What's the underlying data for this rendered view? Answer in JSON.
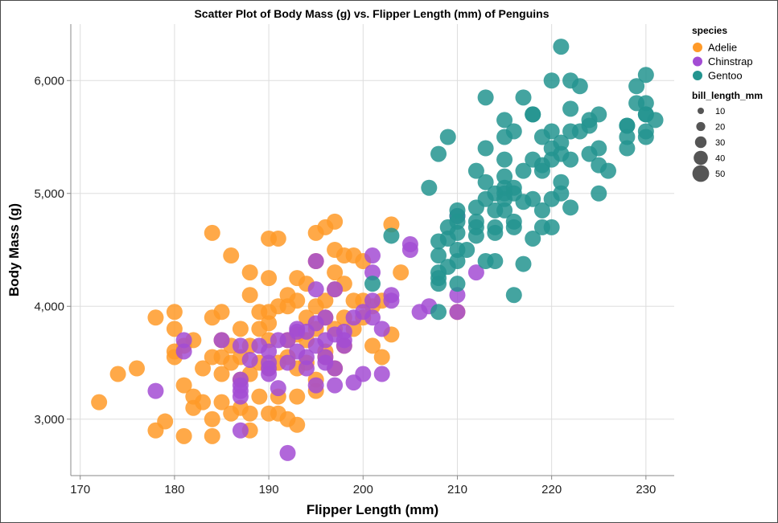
{
  "chart_data": {
    "type": "scatter",
    "title": "Scatter Plot of Body Mass (g) vs. Flipper Length (mm) of Penguins",
    "xlabel": "Flipper Length (mm)",
    "ylabel": "Body Mass (g)",
    "xlim": [
      169,
      233
    ],
    "ylim": [
      2500,
      6500
    ],
    "x_ticks": [
      170,
      180,
      190,
      200,
      210,
      220,
      230
    ],
    "y_ticks": [
      3000,
      4000,
      5000,
      6000
    ],
    "x_tick_labels": [
      "170",
      "180",
      "190",
      "200",
      "210",
      "220",
      "230"
    ],
    "y_tick_labels": [
      "3,000",
      "4,000",
      "5,000",
      "6,000"
    ],
    "grid": true,
    "legend_placement": "right",
    "color_legend_title": "species",
    "size_legend_title": "bill_length_mm",
    "size_legend_values": [
      10,
      20,
      30,
      40,
      50
    ],
    "size_legend_labels": [
      "10",
      "20",
      "30",
      "40",
      "50"
    ],
    "series": [
      {
        "name": "Adelie",
        "color": "#ff9a28",
        "points": [
          [
            172,
            3150
          ],
          [
            174,
            3400
          ],
          [
            176,
            3450
          ],
          [
            178,
            3900
          ],
          [
            178,
            2900
          ],
          [
            179,
            2980
          ],
          [
            180,
            3950
          ],
          [
            180,
            3800
          ],
          [
            180,
            3550
          ],
          [
            180,
            3600
          ],
          [
            181,
            3650
          ],
          [
            181,
            3300
          ],
          [
            181,
            2850
          ],
          [
            182,
            3700
          ],
          [
            182,
            3200
          ],
          [
            182,
            3100
          ],
          [
            183,
            3450
          ],
          [
            183,
            3150
          ],
          [
            184,
            3900
          ],
          [
            184,
            4650
          ],
          [
            184,
            3550
          ],
          [
            184,
            3000
          ],
          [
            184,
            2850
          ],
          [
            185,
            3950
          ],
          [
            185,
            3700
          ],
          [
            185,
            3550
          ],
          [
            185,
            3400
          ],
          [
            185,
            3150
          ],
          [
            186,
            3500
          ],
          [
            186,
            3050
          ],
          [
            186,
            3650
          ],
          [
            186,
            4450
          ],
          [
            187,
            3800
          ],
          [
            187,
            3350
          ],
          [
            187,
            3100
          ],
          [
            187,
            3550
          ],
          [
            188,
            4100
          ],
          [
            188,
            4300
          ],
          [
            188,
            3650
          ],
          [
            188,
            3400
          ],
          [
            188,
            3050
          ],
          [
            188,
            2900
          ],
          [
            189,
            3950
          ],
          [
            189,
            3800
          ],
          [
            189,
            3500
          ],
          [
            189,
            3200
          ],
          [
            190,
            4250
          ],
          [
            190,
            4600
          ],
          [
            190,
            3950
          ],
          [
            190,
            3850
          ],
          [
            190,
            3700
          ],
          [
            190,
            3450
          ],
          [
            190,
            3050
          ],
          [
            191,
            4600
          ],
          [
            191,
            4000
          ],
          [
            191,
            3500
          ],
          [
            191,
            3050
          ],
          [
            191,
            3200
          ],
          [
            192,
            4000
          ],
          [
            192,
            4100
          ],
          [
            192,
            3700
          ],
          [
            192,
            3550
          ],
          [
            192,
            3000
          ],
          [
            193,
            4250
          ],
          [
            193,
            4050
          ],
          [
            193,
            3750
          ],
          [
            193,
            3450
          ],
          [
            193,
            3200
          ],
          [
            193,
            2950
          ],
          [
            194,
            4200
          ],
          [
            194,
            3900
          ],
          [
            194,
            3500
          ],
          [
            194,
            3700
          ],
          [
            195,
            4650
          ],
          [
            195,
            4400
          ],
          [
            195,
            4000
          ],
          [
            195,
            3800
          ],
          [
            195,
            3350
          ],
          [
            195,
            3250
          ],
          [
            196,
            4700
          ],
          [
            196,
            4050
          ],
          [
            196,
            3900
          ],
          [
            196,
            3600
          ],
          [
            196,
            3550
          ],
          [
            197,
            4750
          ],
          [
            197,
            4500
          ],
          [
            197,
            4300
          ],
          [
            197,
            4150
          ],
          [
            197,
            3800
          ],
          [
            197,
            3450
          ],
          [
            198,
            4450
          ],
          [
            198,
            4200
          ],
          [
            198,
            3900
          ],
          [
            198,
            3650
          ],
          [
            199,
            4050
          ],
          [
            199,
            3800
          ],
          [
            199,
            4450
          ],
          [
            200,
            4050
          ],
          [
            200,
            3900
          ],
          [
            200,
            4400
          ],
          [
            201,
            4000
          ],
          [
            201,
            3650
          ],
          [
            202,
            3550
          ],
          [
            202,
            4050
          ],
          [
            203,
            4725
          ],
          [
            203,
            3750
          ],
          [
            204,
            4300
          ],
          [
            210,
            3950
          ]
        ]
      },
      {
        "name": "Chinstrap",
        "color": "#a34cd4",
        "points": [
          [
            178,
            3250
          ],
          [
            181,
            3700
          ],
          [
            181,
            3600
          ],
          [
            185,
            3700
          ],
          [
            187,
            3650
          ],
          [
            187,
            3350
          ],
          [
            187,
            3300
          ],
          [
            187,
            3250
          ],
          [
            187,
            3200
          ],
          [
            187,
            2900
          ],
          [
            188,
            3525
          ],
          [
            189,
            3650
          ],
          [
            190,
            3500
          ],
          [
            190,
            3450
          ],
          [
            190,
            3400
          ],
          [
            190,
            3600
          ],
          [
            191,
            3275
          ],
          [
            191,
            3700
          ],
          [
            192,
            3700
          ],
          [
            192,
            3500
          ],
          [
            192,
            2700
          ],
          [
            193,
            3800
          ],
          [
            193,
            3775
          ],
          [
            193,
            3600
          ],
          [
            194,
            3550
          ],
          [
            194,
            3450
          ],
          [
            194,
            3775
          ],
          [
            195,
            4400
          ],
          [
            195,
            4150
          ],
          [
            195,
            3850
          ],
          [
            195,
            3650
          ],
          [
            195,
            3300
          ],
          [
            196,
            3900
          ],
          [
            196,
            3700
          ],
          [
            196,
            3550
          ],
          [
            196,
            3500
          ],
          [
            197,
            4150
          ],
          [
            197,
            3750
          ],
          [
            197,
            3450
          ],
          [
            197,
            3300
          ],
          [
            198,
            3775
          ],
          [
            198,
            3700
          ],
          [
            198,
            3650
          ],
          [
            199,
            3900
          ],
          [
            199,
            3325
          ],
          [
            200,
            3950
          ],
          [
            200,
            3400
          ],
          [
            201,
            4450
          ],
          [
            201,
            4300
          ],
          [
            201,
            4050
          ],
          [
            201,
            3900
          ],
          [
            202,
            3400
          ],
          [
            202,
            3800
          ],
          [
            203,
            4050
          ],
          [
            203,
            4100
          ],
          [
            205,
            4550
          ],
          [
            205,
            4500
          ],
          [
            206,
            3950
          ],
          [
            207,
            4000
          ],
          [
            210,
            3950
          ],
          [
            210,
            4800
          ],
          [
            210,
            4100
          ],
          [
            212,
            4300
          ]
        ]
      },
      {
        "name": "Gentoo",
        "color": "#23948f",
        "points": [
          [
            201,
            4200
          ],
          [
            203,
            4625
          ],
          [
            207,
            5050
          ],
          [
            208,
            4250
          ],
          [
            208,
            4200
          ],
          [
            208,
            3950
          ],
          [
            208,
            4300
          ],
          [
            208,
            4450
          ],
          [
            208,
            4575
          ],
          [
            208,
            5350
          ],
          [
            209,
            4700
          ],
          [
            209,
            4350
          ],
          [
            209,
            4600
          ],
          [
            209,
            5500
          ],
          [
            210,
            4800
          ],
          [
            210,
            4650
          ],
          [
            210,
            4400
          ],
          [
            210,
            4200
          ],
          [
            210,
            4500
          ],
          [
            210,
            4750
          ],
          [
            210,
            4850
          ],
          [
            211,
            4500
          ],
          [
            212,
            4750
          ],
          [
            212,
            4625
          ],
          [
            212,
            5200
          ],
          [
            212,
            4875
          ],
          [
            212,
            4700
          ],
          [
            213,
            5100
          ],
          [
            213,
            4950
          ],
          [
            213,
            4400
          ],
          [
            213,
            5400
          ],
          [
            213,
            5850
          ],
          [
            214,
            4700
          ],
          [
            214,
            4650
          ],
          [
            214,
            4400
          ],
          [
            214,
            4850
          ],
          [
            214,
            5000
          ],
          [
            215,
            5000
          ],
          [
            215,
            5300
          ],
          [
            215,
            5150
          ],
          [
            215,
            4950
          ],
          [
            215,
            5650
          ],
          [
            215,
            5500
          ],
          [
            215,
            4850
          ],
          [
            215,
            5050
          ],
          [
            216,
            5050
          ],
          [
            216,
            4700
          ],
          [
            216,
            4750
          ],
          [
            216,
            5550
          ],
          [
            216,
            4100
          ],
          [
            216,
            5000
          ],
          [
            217,
            5200
          ],
          [
            217,
            5850
          ],
          [
            217,
            4375
          ],
          [
            217,
            4925
          ],
          [
            218,
            5700
          ],
          [
            218,
            5700
          ],
          [
            218,
            4950
          ],
          [
            218,
            5300
          ],
          [
            218,
            4600
          ],
          [
            219,
            5250
          ],
          [
            219,
            4850
          ],
          [
            219,
            4700
          ],
          [
            219,
            5500
          ],
          [
            219,
            5200
          ],
          [
            220,
            5300
          ],
          [
            220,
            4950
          ],
          [
            220,
            5550
          ],
          [
            220,
            6000
          ],
          [
            220,
            4700
          ],
          [
            220,
            5400
          ],
          [
            221,
            6300
          ],
          [
            221,
            5450
          ],
          [
            221,
            5100
          ],
          [
            221,
            5000
          ],
          [
            221,
            5350
          ],
          [
            222,
            6000
          ],
          [
            222,
            5550
          ],
          [
            222,
            4875
          ],
          [
            222,
            5750
          ],
          [
            222,
            5300
          ],
          [
            223,
            5950
          ],
          [
            223,
            5550
          ],
          [
            224,
            5650
          ],
          [
            224,
            5350
          ],
          [
            224,
            5600
          ],
          [
            225,
            5000
          ],
          [
            225,
            5400
          ],
          [
            225,
            5700
          ],
          [
            225,
            5250
          ],
          [
            226,
            5200
          ],
          [
            228,
            5600
          ],
          [
            228,
            5600
          ],
          [
            228,
            5400
          ],
          [
            228,
            5500
          ],
          [
            229,
            5950
          ],
          [
            229,
            5800
          ],
          [
            230,
            6050
          ],
          [
            230,
            5700
          ],
          [
            230,
            5500
          ],
          [
            230,
            5550
          ],
          [
            230,
            5800
          ],
          [
            230,
            5700
          ],
          [
            231,
            5650
          ]
        ]
      }
    ]
  }
}
